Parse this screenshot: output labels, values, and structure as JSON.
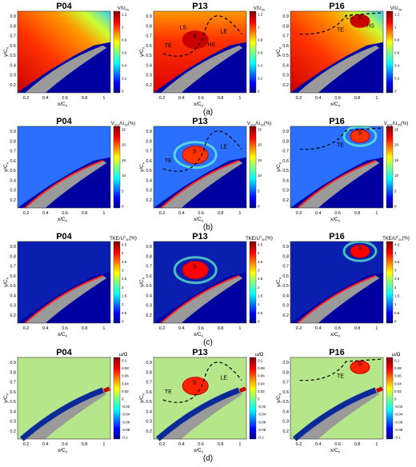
{
  "figure": {
    "row_labels": [
      "(a)",
      "(b)",
      "(c)",
      "(d)"
    ],
    "panel_titles": [
      "P04",
      "P13",
      "P16"
    ],
    "ylabel": "y/C",
    "ylabel_sub": "x",
    "xlabel": "x/C",
    "xlabel_sub": "x",
    "xticks": [
      "0.2",
      "0.4",
      "0.6",
      "0.8",
      "1"
    ],
    "yticks": [
      "0.2",
      "0.3",
      "0.4",
      "0.5",
      "0.6",
      "0.7",
      "0.8",
      "0.9"
    ],
    "rows": [
      {
        "colorbar_label": "V/U",
        "colorbar_label_sub": "2h",
        "colorbar_ticks": [
          "1.2",
          "1",
          "0.8",
          "0.6",
          "0.4",
          "0.2",
          "0"
        ],
        "annotations": {
          "P04": [],
          "P13": [
            "LE",
            "LS",
            "S",
            "HS",
            "TE"
          ],
          "P16": [
            "LS",
            "S",
            "HS",
            "TE"
          ]
        }
      },
      {
        "colorbar_label": "V",
        "colorbar_label_sub": "rms",
        "colorbar_label_tail": "/U",
        "colorbar_label_tail_sub": "2h",
        "colorbar_label_unit": "(%)",
        "colorbar_ticks": [
          "25",
          "20",
          "15",
          "10",
          "5",
          "0"
        ],
        "annotations": {
          "P04": [],
          "P13": [
            "LE",
            "S",
            "TE"
          ],
          "P16": [
            "S",
            "TE"
          ]
        }
      },
      {
        "colorbar_label": "TKE/U",
        "colorbar_label_sup": "2",
        "colorbar_label_sub": "2h",
        "colorbar_label_unit": "(%)",
        "colorbar_ticks": [
          "4.5",
          "4",
          "3.5",
          "3",
          "2.5",
          "2",
          "1.5",
          "1",
          "0.5",
          "0"
        ],
        "annotations": {
          "P04": [],
          "P13": [
            "S"
          ],
          "P16": [
            "S"
          ]
        }
      },
      {
        "colorbar_label": "ω/Ω",
        "colorbar_ticks": [
          "0.1",
          "0.08",
          "0.06",
          "0.04",
          "0.02",
          "0",
          "-0.02",
          "-0.04",
          "-0.06",
          "-0.08",
          "-0.1"
        ],
        "annotations": {
          "P04": [],
          "P13": [
            "LE",
            "S",
            "TE"
          ],
          "P16": [
            "S",
            "TE"
          ]
        }
      }
    ],
    "colors": {
      "jet": [
        "#00008f",
        "#0000ff",
        "#0080ff",
        "#00ffff",
        "#80ff80",
        "#ffff00",
        "#ff8000",
        "#ff0000",
        "#800000"
      ],
      "blade_gray": "#9a9a9a",
      "contour_red": "#c00000",
      "dashed_black": "#000000"
    }
  }
}
